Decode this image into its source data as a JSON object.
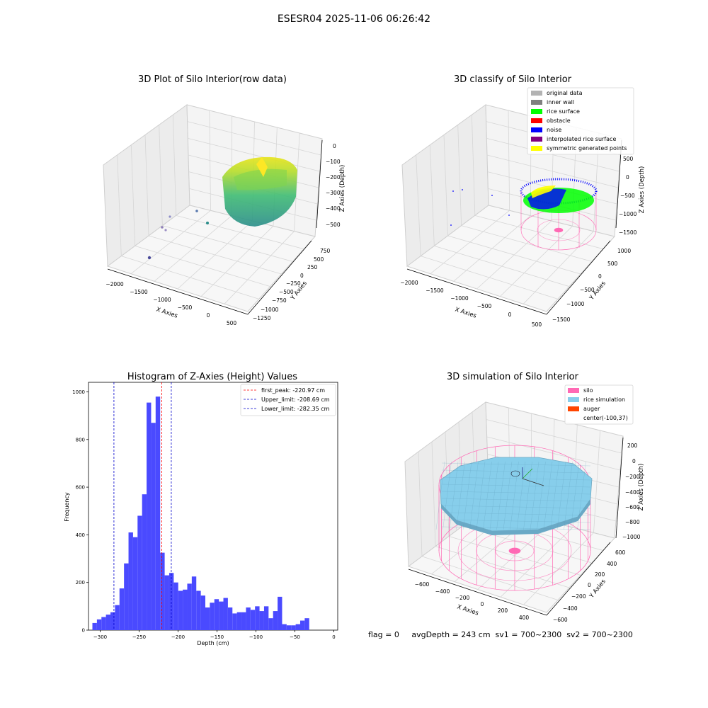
{
  "suptitle": "ESESR04 2025-11-06 06:26:42",
  "status_line": "flag = 0     avgDepth = 243 cm  sv1 = 700~2300  sv2 = 700~2300",
  "chart_data": [
    {
      "id": "raw",
      "type": "scatter",
      "title": "3D Plot of Silo Interior(row data)",
      "xlabel": "X Axies",
      "ylabel": "Y Axies",
      "zlabel": "Z Axies (Depth)",
      "x_ticks": [
        "−2000",
        "−1500",
        "−1000",
        "−500",
        "0",
        "500"
      ],
      "y_ticks": [
        "750",
        "500",
        "250",
        "0",
        "−250",
        "−500",
        "−750",
        "−1000",
        "−1250"
      ],
      "z_ticks": [
        "0",
        "−100",
        "−200",
        "−300",
        "−400",
        "−500"
      ],
      "colormap": "viridis"
    },
    {
      "id": "classify",
      "type": "scatter",
      "title": "3D classify of Silo Interior",
      "xlabel": "X Axies",
      "ylabel": "Y Axies",
      "zlabel": "Z Axies (Depth)",
      "x_ticks": [
        "−2000",
        "−1500",
        "−1000",
        "−500",
        "0",
        "500"
      ],
      "y_ticks": [
        "1000",
        "500",
        "0",
        "−500",
        "−1000",
        "−1500"
      ],
      "z_ticks": [
        "500",
        "0",
        "−500",
        "−1000",
        "−1500"
      ],
      "legend": [
        {
          "label": "original data",
          "color": "#b3b3b3"
        },
        {
          "label": "inner wall",
          "color": "#808080"
        },
        {
          "label": "rice surface",
          "color": "#00ff00"
        },
        {
          "label": "obstacle",
          "color": "#ff0000"
        },
        {
          "label": "noise",
          "color": "#0000ff"
        },
        {
          "label": "interpolated rice surface",
          "color": "#800080"
        },
        {
          "label": "symmetric generated points",
          "color": "#ffff00"
        }
      ],
      "legend_position": "top-right"
    },
    {
      "id": "hist",
      "type": "bar",
      "title": "Histogram of Z-Axies (Height) Values",
      "xlabel": "Depth (cm)",
      "ylabel": "Frequency",
      "bin_start": -310,
      "bin_width": 5.8,
      "xlim": [
        -315,
        5
      ],
      "ylim": [
        0,
        1040
      ],
      "x_ticks": [
        -300,
        -250,
        -200,
        -150,
        -100,
        -50,
        0
      ],
      "y_ticks": [
        0,
        200,
        400,
        600,
        800,
        1000
      ],
      "values": [
        30,
        45,
        55,
        65,
        75,
        105,
        175,
        280,
        410,
        390,
        480,
        570,
        955,
        870,
        980,
        325,
        230,
        240,
        200,
        165,
        170,
        195,
        225,
        165,
        145,
        95,
        115,
        130,
        120,
        135,
        95,
        70,
        75,
        75,
        95,
        85,
        100,
        80,
        100,
        50,
        80,
        140,
        25,
        20,
        20,
        25,
        40,
        50
      ],
      "bar_color": "#4a4aff",
      "lines": [
        {
          "label": "first_peak: -220.97 cm",
          "x": -220.97,
          "color": "#ff0000"
        },
        {
          "label": "Upper_limit: -208.69 cm",
          "x": -208.69,
          "color": "#0000cc"
        },
        {
          "label": "Lower_limit: -282.35 cm",
          "x": -282.35,
          "color": "#0000cc"
        }
      ],
      "legend_position": "top-right"
    },
    {
      "id": "sim",
      "type": "scatter",
      "title": "3D simulation of Silo Interior",
      "xlabel": "X Axies",
      "ylabel": "Y Axies",
      "zlabel": "Z Axies (Depth)",
      "x_ticks": [
        "−600",
        "−400",
        "−200",
        "0",
        "200",
        "400"
      ],
      "y_ticks": [
        "600",
        "400",
        "200",
        "0",
        "−200",
        "−400",
        "−600"
      ],
      "z_ticks": [
        "200",
        "0",
        "−200",
        "−400",
        "−600",
        "−800",
        "−1000"
      ],
      "legend": [
        {
          "label": "silo",
          "color": "#ff69b4"
        },
        {
          "label": "rice simulation",
          "color": "#87ceeb"
        },
        {
          "label": "auger",
          "color": "#ff4500"
        },
        {
          "label": "center(-100,37)",
          "color": ""
        }
      ],
      "legend_position": "top-right"
    }
  ]
}
